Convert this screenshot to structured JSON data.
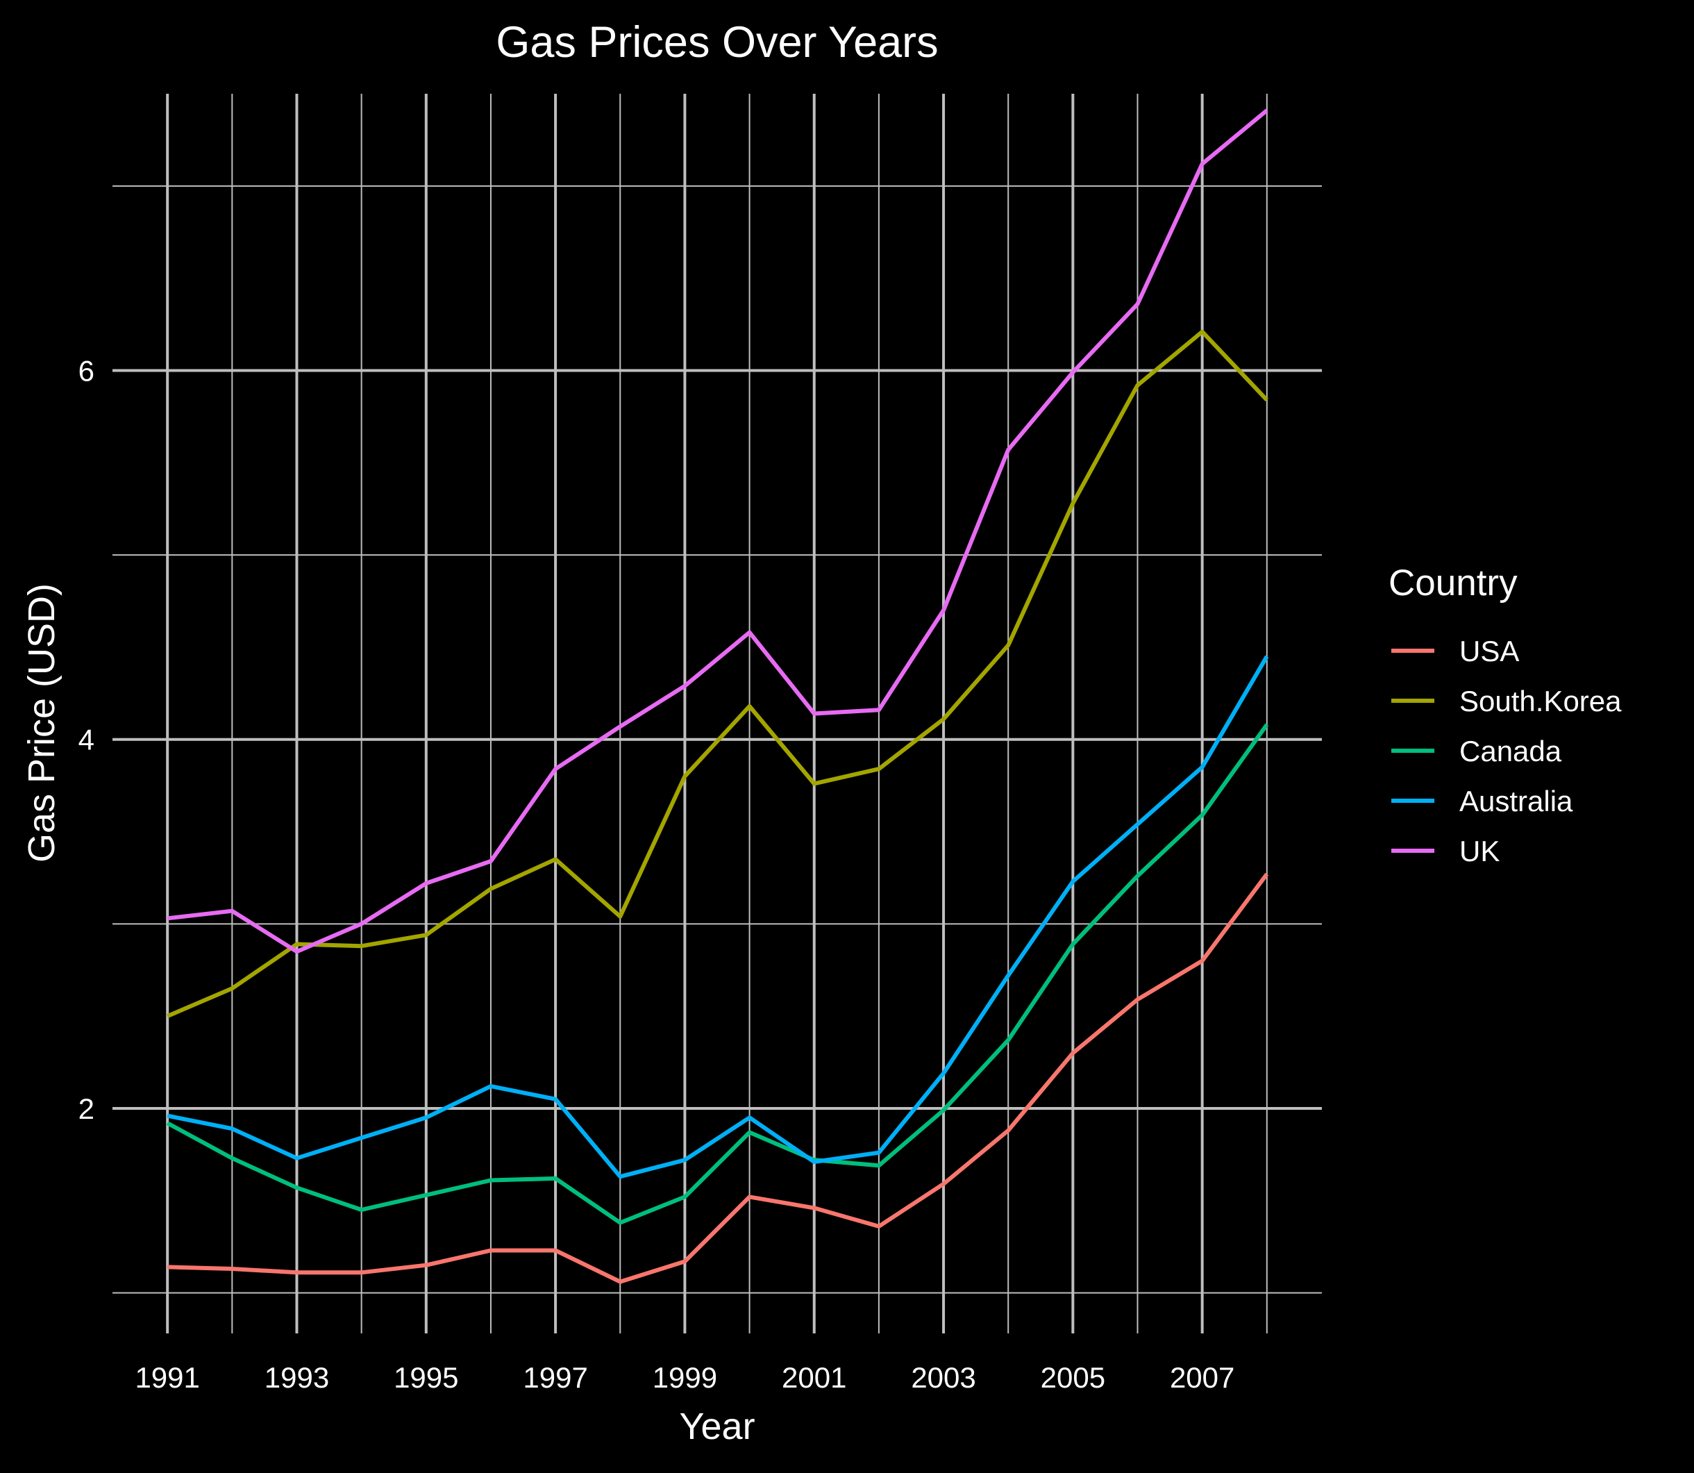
{
  "chart_data": {
    "type": "line",
    "title": "Gas Prices Over Years",
    "xlabel": "Year",
    "ylabel": "Gas Price (USD)",
    "x": [
      1991,
      1992,
      1993,
      1994,
      1995,
      1996,
      1997,
      1998,
      1999,
      2000,
      2001,
      2002,
      2003,
      2004,
      2005,
      2006,
      2007,
      2008
    ],
    "xlim": [
      1990.15,
      2008.85
    ],
    "ylim": [
      0.78,
      7.5
    ],
    "x_ticks": [
      1991,
      1993,
      1995,
      1997,
      1999,
      2001,
      2003,
      2005,
      2007
    ],
    "x_tick_labels": [
      "1991",
      "1993",
      "1995",
      "1997",
      "1999",
      "2001",
      "2003",
      "2005",
      "2007"
    ],
    "y_ticks": [
      2,
      4,
      6
    ],
    "y_tick_labels": [
      "2",
      "4",
      "6"
    ],
    "y_minor_ticks": [
      1,
      3,
      5,
      7
    ],
    "grid": true,
    "legend": {
      "title": "Country",
      "position": "right"
    },
    "series": [
      {
        "name": "USA",
        "color": "#F8766D",
        "values": [
          1.14,
          1.13,
          1.11,
          1.11,
          1.15,
          1.23,
          1.23,
          1.06,
          1.17,
          1.52,
          1.46,
          1.36,
          1.59,
          1.88,
          2.3,
          2.59,
          2.8,
          3.27
        ]
      },
      {
        "name": "South.Korea",
        "color": "#A3A500",
        "values": [
          2.5,
          2.65,
          2.89,
          2.88,
          2.94,
          3.19,
          3.35,
          3.04,
          3.8,
          4.18,
          3.76,
          3.84,
          4.11,
          4.51,
          5.28,
          5.92,
          6.21,
          5.84
        ]
      },
      {
        "name": "Canada",
        "color": "#00BF7D",
        "values": [
          1.92,
          1.73,
          1.57,
          1.45,
          1.53,
          1.61,
          1.62,
          1.38,
          1.52,
          1.87,
          1.72,
          1.69,
          1.99,
          2.37,
          2.89,
          3.26,
          3.59,
          4.08
        ]
      },
      {
        "name": "Australia",
        "color": "#00B0F6",
        "values": [
          1.96,
          1.89,
          1.73,
          1.84,
          1.95,
          2.12,
          2.05,
          1.63,
          1.72,
          1.95,
          1.71,
          1.76,
          2.19,
          2.72,
          3.23,
          3.54,
          3.85,
          4.45
        ]
      },
      {
        "name": "UK",
        "color": "#E76BF3",
        "values": [
          3.03,
          3.07,
          2.85,
          3.0,
          3.22,
          3.34,
          3.84,
          4.07,
          4.29,
          4.58,
          4.14,
          4.16,
          4.7,
          5.57,
          5.99,
          6.36,
          7.12,
          7.41
        ]
      }
    ]
  }
}
